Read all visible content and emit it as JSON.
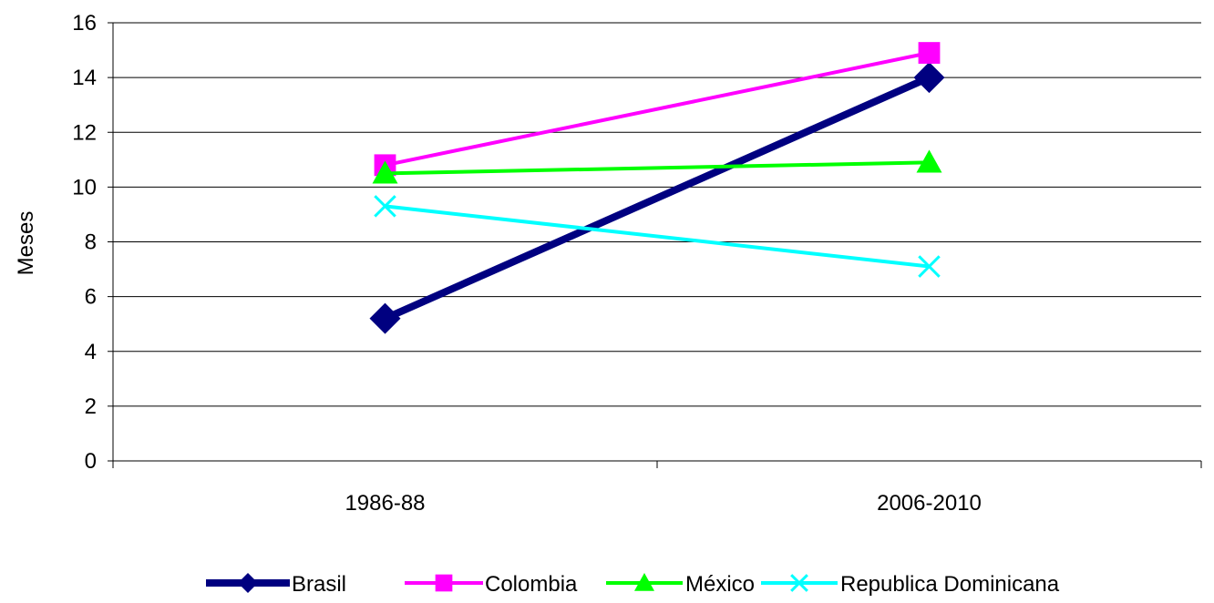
{
  "chart_data": {
    "type": "line",
    "categories": [
      "1986-88",
      "2006-2010"
    ],
    "ylabel": "Meses",
    "ylim": [
      0,
      16
    ],
    "ytick_step": 2,
    "yticks": [
      "0",
      "2",
      "4",
      "6",
      "8",
      "10",
      "12",
      "14",
      "16"
    ],
    "grid": true,
    "legend_position": "bottom",
    "series": [
      {
        "name": "Brasil",
        "values": [
          5.2,
          14.0
        ],
        "color": "#000080",
        "marker": "diamond"
      },
      {
        "name": "Colombia",
        "values": [
          10.8,
          14.9
        ],
        "color": "#ff00ff",
        "marker": "square"
      },
      {
        "name": "México",
        "values": [
          10.5,
          10.9
        ],
        "color": "#00ff00",
        "marker": "triangle"
      },
      {
        "name": "Republica Dominicana",
        "values": [
          9.3,
          7.1
        ],
        "color": "#00ffff",
        "marker": "x"
      }
    ]
  }
}
